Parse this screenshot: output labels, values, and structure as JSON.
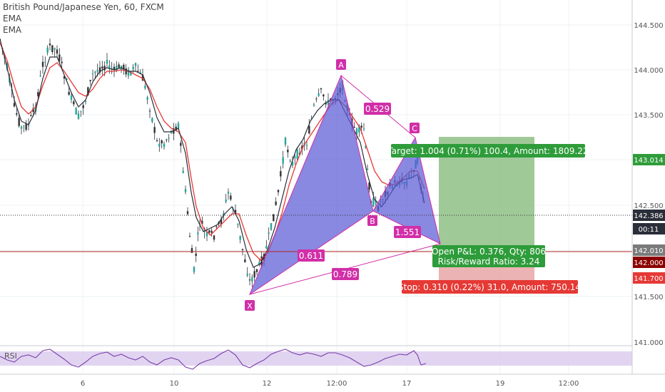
{
  "header": {
    "symbol_title": "British Pound/Japanese Yen, 60, FXCM",
    "indicators": [
      "EMA",
      "EMA"
    ]
  },
  "price_axis": {
    "ticks": [
      "144.500",
      "144.000",
      "143.500",
      "143.014",
      "142.500",
      "142.386",
      "00:11",
      "142.010",
      "142.000",
      "141.700",
      "141.500",
      "141.000"
    ]
  },
  "time_axis": {
    "ticks": [
      "6",
      "10",
      "12",
      "12:00",
      "17",
      "19",
      "12:00"
    ]
  },
  "pattern": {
    "points": {
      "X": "X",
      "A": "A",
      "B": "B",
      "C": "C"
    },
    "ratios": [
      "0.529",
      "1.551",
      "0.611",
      "0.789"
    ]
  },
  "position": {
    "target_label": "Target: 1.004 (0.71%) 100.4, Amount: 1809.22",
    "open_pl_label": "Open P&L: 0.376, Qty: 806",
    "rr_label": "Risk/Reward Ratio: 3.24",
    "stop_label": "Stop: 0.310 (0.22%) 31.0, Amount: 750.14"
  },
  "rsi": {
    "label": "RSI"
  },
  "colors": {
    "up": "#26a69a",
    "down": "#ef5350",
    "ema_fast": "#2a2e39",
    "ema_slow": "#e53935",
    "pattern_fill": "#5b5bd6",
    "pattern_line": "#d12fa8",
    "target": "#4caf50",
    "stop": "#e53935"
  }
}
